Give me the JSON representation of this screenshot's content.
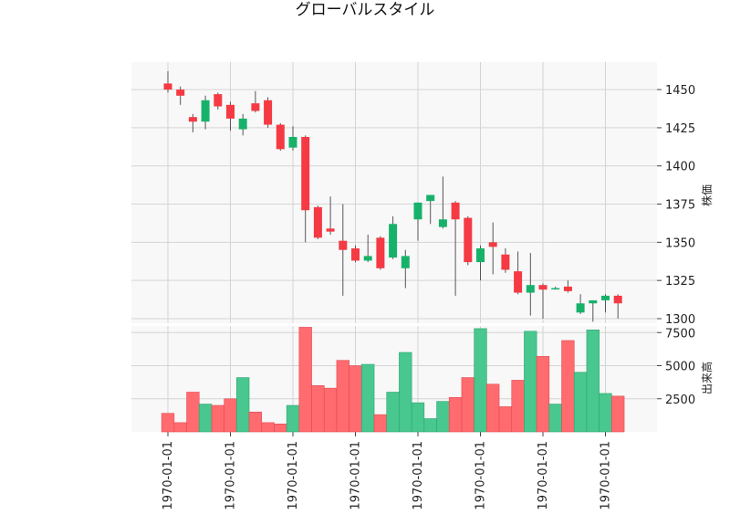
{
  "chart_data": {
    "type": "candlestick",
    "title": "グローバルスタイル",
    "price_ylabel": "株価",
    "volume_ylabel": "出来高",
    "x_tick_labels": [
      "1970-01-01",
      "1970-01-01",
      "1970-01-01",
      "1970-01-01",
      "1970-01-01",
      "1970-01-01",
      "1970-01-01",
      "1970-01-01"
    ],
    "x_tick_indices": [
      0,
      5,
      10,
      15,
      20,
      25,
      30,
      35
    ],
    "price_ylim": [
      1297,
      1468
    ],
    "price_ticks": [
      1300,
      1325,
      1350,
      1375,
      1400,
      1425,
      1450
    ],
    "volume_ylim": [
      0,
      8000
    ],
    "volume_ticks": [
      2500,
      5000,
      7500
    ],
    "grid": true,
    "up_color": "#17b26a",
    "down_color": "#f53a43",
    "candles": [
      {
        "open": 1454,
        "high": 1462,
        "low": 1448,
        "close": 1450,
        "volume": 1400
      },
      {
        "open": 1450,
        "high": 1452,
        "low": 1440,
        "close": 1446,
        "volume": 700
      },
      {
        "open": 1432,
        "high": 1434,
        "low": 1422,
        "close": 1429,
        "volume": 3000
      },
      {
        "open": 1429,
        "high": 1446,
        "low": 1424,
        "close": 1443,
        "volume": 2100
      },
      {
        "open": 1447,
        "high": 1448,
        "low": 1437,
        "close": 1439,
        "volume": 2000
      },
      {
        "open": 1440,
        "high": 1442,
        "low": 1423,
        "close": 1431,
        "volume": 2500
      },
      {
        "open": 1424,
        "high": 1434,
        "low": 1420,
        "close": 1431,
        "volume": 4100
      },
      {
        "open": 1441,
        "high": 1449,
        "low": 1435,
        "close": 1436,
        "volume": 1500
      },
      {
        "open": 1443,
        "high": 1445,
        "low": 1425,
        "close": 1427,
        "volume": 700
      },
      {
        "open": 1427,
        "high": 1428,
        "low": 1410,
        "close": 1411,
        "volume": 600
      },
      {
        "open": 1412,
        "high": 1426,
        "low": 1410,
        "close": 1419,
        "volume": 2000
      },
      {
        "open": 1419,
        "high": 1420,
        "low": 1350,
        "close": 1371,
        "volume": 7900
      },
      {
        "open": 1373,
        "high": 1374,
        "low": 1352,
        "close": 1353,
        "volume": 3500
      },
      {
        "open": 1359,
        "high": 1380,
        "low": 1355,
        "close": 1357,
        "volume": 3300
      },
      {
        "open": 1351,
        "high": 1375,
        "low": 1315,
        "close": 1345,
        "volume": 5400
      },
      {
        "open": 1346,
        "high": 1348,
        "low": 1337,
        "close": 1338,
        "volume": 5000
      },
      {
        "open": 1338,
        "high": 1355,
        "low": 1337,
        "close": 1341,
        "volume": 5100
      },
      {
        "open": 1353,
        "high": 1354,
        "low": 1332,
        "close": 1333,
        "volume": 1300
      },
      {
        "open": 1340,
        "high": 1367,
        "low": 1339,
        "close": 1362,
        "volume": 3000
      },
      {
        "open": 1333,
        "high": 1345,
        "low": 1320,
        "close": 1341,
        "volume": 6000
      },
      {
        "open": 1365,
        "high": 1376,
        "low": 1351,
        "close": 1376,
        "volume": 2200
      },
      {
        "open": 1377,
        "high": 1381,
        "low": 1362,
        "close": 1381,
        "volume": 1000
      },
      {
        "open": 1360,
        "high": 1393,
        "low": 1359,
        "close": 1365,
        "volume": 2300
      },
      {
        "open": 1376,
        "high": 1377,
        "low": 1315,
        "close": 1365,
        "volume": 2600
      },
      {
        "open": 1366,
        "high": 1367,
        "low": 1335,
        "close": 1337,
        "volume": 4100
      },
      {
        "open": 1337,
        "high": 1348,
        "low": 1325,
        "close": 1346,
        "volume": 7800
      },
      {
        "open": 1350,
        "high": 1363,
        "low": 1329,
        "close": 1347,
        "volume": 3600
      },
      {
        "open": 1342,
        "high": 1346,
        "low": 1330,
        "close": 1332,
        "volume": 1900
      },
      {
        "open": 1331,
        "high": 1344,
        "low": 1316,
        "close": 1317,
        "volume": 3900
      },
      {
        "open": 1317,
        "high": 1343,
        "low": 1302,
        "close": 1322,
        "volume": 7600
      },
      {
        "open": 1322,
        "high": 1323,
        "low": 1300,
        "close": 1319,
        "volume": 5700
      },
      {
        "open": 1320,
        "high": 1321,
        "low": 1319,
        "close": 1320,
        "volume": 2100
      },
      {
        "open": 1321,
        "high": 1325,
        "low": 1317,
        "close": 1318,
        "volume": 6900
      },
      {
        "open": 1304,
        "high": 1316,
        "low": 1303,
        "close": 1310,
        "volume": 4500
      },
      {
        "open": 1310,
        "high": 1312,
        "low": 1298,
        "close": 1312,
        "volume": 7700
      },
      {
        "open": 1312,
        "high": 1316,
        "low": 1304,
        "close": 1315,
        "volume": 2900
      },
      {
        "open": 1315,
        "high": 1316,
        "low": 1300,
        "close": 1310,
        "volume": 2700
      }
    ]
  }
}
